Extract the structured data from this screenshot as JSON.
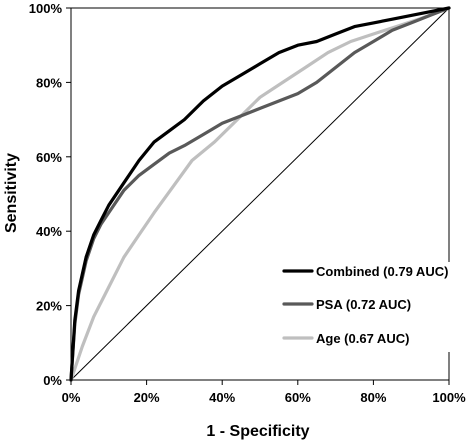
{
  "chart_data": {
    "type": "line",
    "title": "",
    "xlabel": "1 - Specificity",
    "ylabel": "Sensitivity",
    "xlim": [
      0,
      100
    ],
    "ylim": [
      0,
      100
    ],
    "grid": false,
    "legend_position": "bottom-right",
    "x_ticks": [
      "0%",
      "20%",
      "40%",
      "60%",
      "80%",
      "100%"
    ],
    "y_ticks": [
      "0%",
      "20%",
      "40%",
      "60%",
      "80%",
      "100%"
    ],
    "reference_line": {
      "x": [
        0,
        100
      ],
      "y": [
        0,
        100
      ],
      "color": "#000000"
    },
    "series": [
      {
        "name": "Combined (0.79 AUC)",
        "color": "#000000",
        "x": [
          0,
          1,
          2,
          4,
          6,
          8,
          10,
          14,
          18,
          22,
          26,
          30,
          35,
          40,
          45,
          50,
          55,
          60,
          65,
          70,
          75,
          80,
          85,
          90,
          95,
          100
        ],
        "y": [
          0,
          16,
          24,
          33,
          39,
          43,
          47,
          53,
          59,
          64,
          67,
          70,
          75,
          79,
          82,
          85,
          88,
          90,
          91,
          93,
          95,
          96,
          97,
          98,
          99,
          100
        ]
      },
      {
        "name": "PSA (0.72 AUC)",
        "color": "#595959",
        "x": [
          0,
          1,
          2,
          4,
          6,
          8,
          10,
          14,
          18,
          22,
          26,
          30,
          35,
          40,
          45,
          50,
          55,
          60,
          65,
          70,
          75,
          80,
          85,
          90,
          95,
          100
        ],
        "y": [
          0,
          15,
          23,
          32,
          38,
          42,
          45,
          51,
          55,
          58,
          61,
          63,
          66,
          69,
          71,
          73,
          75,
          77,
          80,
          84,
          88,
          91,
          94,
          96,
          98,
          100
        ]
      },
      {
        "name": "Age (0.67 AUC)",
        "color": "#bfbfbf",
        "x": [
          0,
          3,
          6,
          10,
          14,
          18,
          22,
          27,
          32,
          38,
          44,
          50,
          56,
          62,
          68,
          74,
          80,
          86,
          92,
          100
        ],
        "y": [
          0,
          9,
          17,
          25,
          33,
          39,
          45,
          52,
          59,
          64,
          70,
          76,
          80,
          84,
          88,
          91,
          93,
          95,
          97,
          100
        ]
      }
    ]
  }
}
